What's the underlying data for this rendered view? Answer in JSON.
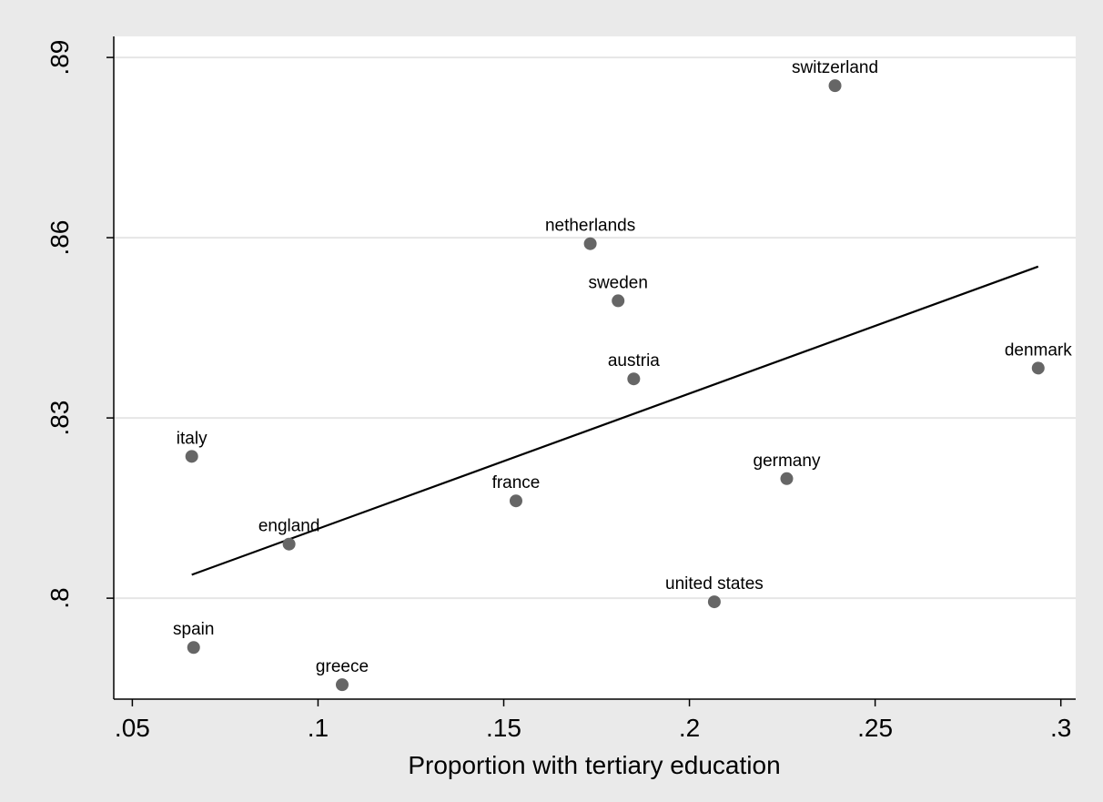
{
  "chart_data": {
    "type": "scatter",
    "title": "",
    "xlabel": "Proportion with tertiary education",
    "ylabel": "",
    "xlim": [
      0.045,
      0.304
    ],
    "ylim": [
      0.7832,
      0.8935
    ],
    "x_ticks": [
      0.05,
      0.1,
      0.15,
      0.2,
      0.25,
      0.3
    ],
    "x_tick_labels": [
      ".05",
      ".1",
      ".15",
      ".2",
      ".25",
      ".3"
    ],
    "y_ticks": [
      0.8,
      0.83,
      0.86,
      0.89
    ],
    "y_tick_labels": [
      ".8",
      ".83",
      ".86",
      ".89"
    ],
    "grid": "horizontal",
    "legend": "none",
    "colors": {
      "background": "#eaeaea",
      "plot_area": "#ffffff",
      "gridline": "#e6e6e6",
      "marker": "#666666",
      "fit_line": "#000000"
    },
    "points": [
      {
        "label": "switzerland",
        "x": 0.2392,
        "y": 0.8853
      },
      {
        "label": "netherlands",
        "x": 0.1733,
        "y": 0.859
      },
      {
        "label": "sweden",
        "x": 0.1808,
        "y": 0.8495
      },
      {
        "label": "austria",
        "x": 0.185,
        "y": 0.8365
      },
      {
        "label": "denmark",
        "x": 0.2939,
        "y": 0.8383
      },
      {
        "label": "italy",
        "x": 0.066,
        "y": 0.8236
      },
      {
        "label": "germany",
        "x": 0.2262,
        "y": 0.8199
      },
      {
        "label": "france",
        "x": 0.1533,
        "y": 0.8162
      },
      {
        "label": "england",
        "x": 0.0922,
        "y": 0.809
      },
      {
        "label": "united states",
        "x": 0.2067,
        "y": 0.7994
      },
      {
        "label": "spain",
        "x": 0.0665,
        "y": 0.7918
      },
      {
        "label": "greece",
        "x": 0.1065,
        "y": 0.7856
      }
    ],
    "fit_line": {
      "x": [
        0.066,
        0.2939
      ],
      "y": [
        0.8039,
        0.8552
      ]
    }
  }
}
